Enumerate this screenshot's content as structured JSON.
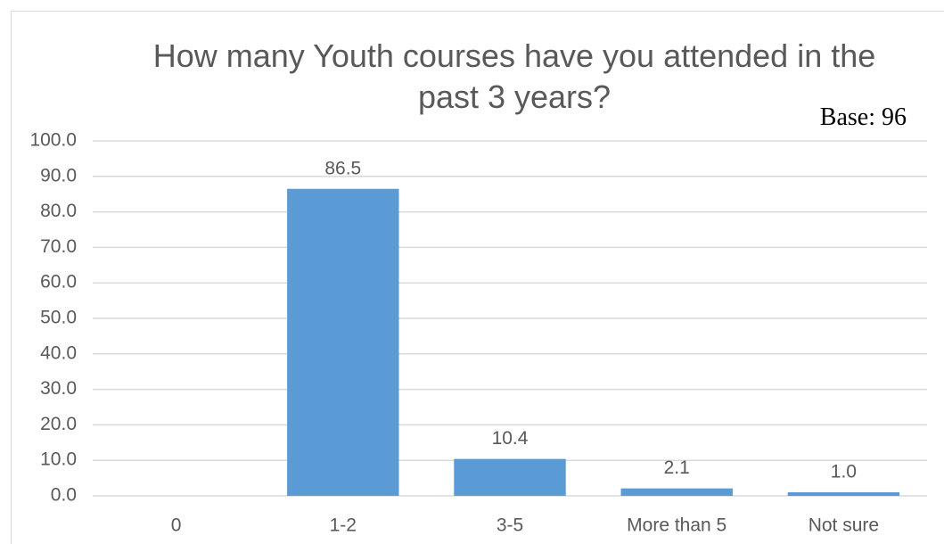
{
  "chart_data": {
    "type": "bar",
    "title": "How many Youth courses have you attended in the past 3 years?",
    "annotation": "Base: 96",
    "categories": [
      "0",
      "1-2",
      "3-5",
      "More than 5",
      "Not sure"
    ],
    "values": [
      null,
      86.5,
      10.4,
      2.1,
      1.0
    ],
    "value_labels": [
      null,
      "86.5",
      "10.4",
      "2.1",
      "1.0"
    ],
    "color": "#5b9bd5",
    "ylim": [
      0,
      100
    ],
    "yticks": [
      {
        "value": 0,
        "label": "0.0"
      },
      {
        "value": 10,
        "label": "10.0"
      },
      {
        "value": 20,
        "label": "20.0"
      },
      {
        "value": 30,
        "label": "30.0"
      },
      {
        "value": 40,
        "label": "40.0"
      },
      {
        "value": 50,
        "label": "50.0"
      },
      {
        "value": 60,
        "label": "60.0"
      },
      {
        "value": 70,
        "label": "70.0"
      },
      {
        "value": 80,
        "label": "80.0"
      },
      {
        "value": 90,
        "label": "90.0"
      },
      {
        "value": 100,
        "label": "100.0"
      }
    ],
    "grid": true
  }
}
